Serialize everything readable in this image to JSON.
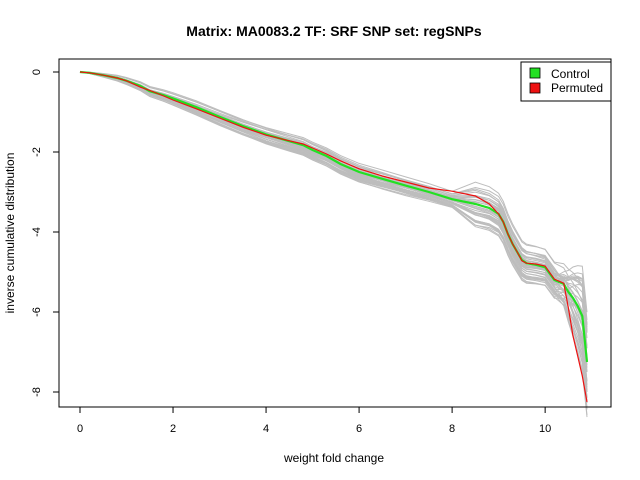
{
  "chart_data": {
    "type": "line",
    "title": "Matrix: MA0083.2 TF: SRF SNP set: regSNPs",
    "xlabel": "weight fold change",
    "ylabel": "inverse cumulative distribution",
    "xlim": [
      0,
      10.9
    ],
    "ylim": [
      -8.1,
      0.1
    ],
    "x_ticks": [
      0,
      2,
      4,
      6,
      8,
      10
    ],
    "x_tick_labels": [
      "0",
      "2",
      "4",
      "6",
      "8",
      "10"
    ],
    "y_ticks": [
      0,
      -2,
      -4,
      -6,
      -8
    ],
    "y_tick_labels": [
      "0",
      "-2",
      "-4",
      "-6",
      "-8"
    ],
    "grid": false,
    "legend": {
      "position": "top-right",
      "entries": [
        {
          "label": "Control",
          "color": "#22e022"
        },
        {
          "label": "Permuted",
          "color": "#ee1111"
        }
      ]
    },
    "background_series": {
      "description": "many grey permutation curves",
      "color": "#bdbdbd",
      "count": 40
    },
    "series": [
      {
        "name": "Control",
        "color": "#22e022",
        "x": [
          0.0,
          0.2,
          0.5,
          0.8,
          1.0,
          1.3,
          1.5,
          1.8,
          2.0,
          2.5,
          3.0,
          3.5,
          4.0,
          4.5,
          4.8,
          5.0,
          5.3,
          5.6,
          6.0,
          6.5,
          7.0,
          7.5,
          8.0,
          8.5,
          8.8,
          9.0,
          9.1,
          9.2,
          9.3,
          9.4,
          9.5,
          9.6,
          9.8,
          10.0,
          10.2,
          10.4,
          10.5,
          10.6,
          10.7,
          10.8,
          10.9
        ],
        "y": [
          0.0,
          -0.02,
          -0.08,
          -0.15,
          -0.22,
          -0.35,
          -0.48,
          -0.58,
          -0.66,
          -0.88,
          -1.12,
          -1.35,
          -1.56,
          -1.73,
          -1.83,
          -1.95,
          -2.1,
          -2.3,
          -2.5,
          -2.67,
          -2.84,
          -3.0,
          -3.18,
          -3.3,
          -3.4,
          -3.55,
          -3.75,
          -4.05,
          -4.3,
          -4.5,
          -4.7,
          -4.78,
          -4.82,
          -4.88,
          -5.2,
          -5.3,
          -5.5,
          -5.65,
          -5.85,
          -6.1,
          -7.25
        ]
      },
      {
        "name": "Permuted",
        "color": "#ee1111",
        "x": [
          0.0,
          0.2,
          0.5,
          0.8,
          1.0,
          1.3,
          1.5,
          1.8,
          2.0,
          2.5,
          3.0,
          3.5,
          4.0,
          4.5,
          4.8,
          5.0,
          5.3,
          5.6,
          6.0,
          6.5,
          7.0,
          7.5,
          8.0,
          8.5,
          8.8,
          9.0,
          9.1,
          9.2,
          9.3,
          9.4,
          9.5,
          9.6,
          9.8,
          10.0,
          10.2,
          10.4,
          10.5,
          10.6,
          10.7,
          10.8,
          10.9
        ],
        "y": [
          0.0,
          -0.02,
          -0.08,
          -0.15,
          -0.22,
          -0.38,
          -0.46,
          -0.6,
          -0.7,
          -0.92,
          -1.15,
          -1.38,
          -1.58,
          -1.72,
          -1.8,
          -1.9,
          -2.05,
          -2.22,
          -2.42,
          -2.6,
          -2.75,
          -2.9,
          -2.98,
          -3.1,
          -3.3,
          -3.55,
          -3.75,
          -4.05,
          -4.3,
          -4.5,
          -4.72,
          -4.78,
          -4.8,
          -4.85,
          -5.18,
          -5.28,
          -5.9,
          -6.6,
          -7.1,
          -7.6,
          -8.25
        ]
      }
    ]
  }
}
